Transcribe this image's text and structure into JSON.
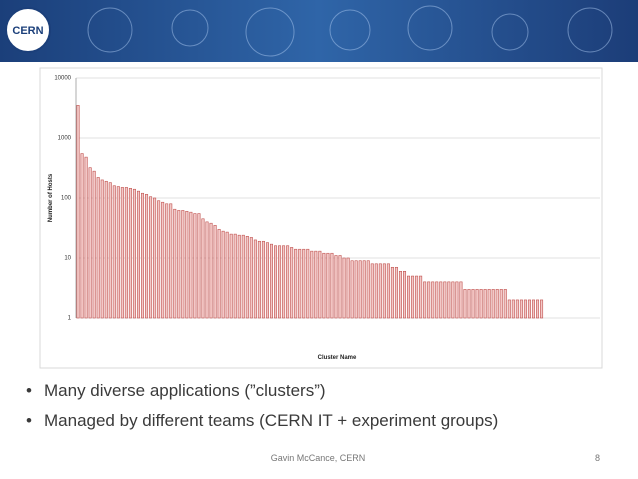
{
  "chart_data": {
    "type": "bar",
    "xlabel": "Cluster Name",
    "ylabel": "Number of Hosts",
    "log": true,
    "grid": true,
    "color": "#f3c9c8",
    "edgecolor": "#c0504d",
    "ylim": [
      1,
      10000
    ],
    "yticks": [
      1,
      10,
      100,
      1000,
      10000
    ],
    "categories": [
      null,
      null,
      null,
      null,
      null,
      null,
      null,
      null,
      null,
      null,
      null,
      null,
      null,
      null,
      null,
      null,
      null,
      null,
      null,
      null,
      null,
      null,
      null,
      null,
      null,
      null,
      null,
      null,
      null,
      null,
      null,
      null,
      null,
      null,
      null,
      null,
      null,
      null,
      null,
      null,
      null,
      null,
      null,
      null,
      null,
      null,
      null,
      null,
      null,
      null,
      null,
      null,
      null,
      null,
      null,
      null,
      null,
      null,
      null,
      null,
      null,
      null,
      null,
      null,
      null,
      null,
      null,
      null,
      null,
      null,
      null,
      null,
      null,
      null,
      null,
      null,
      null,
      null,
      null,
      null,
      null,
      null,
      null,
      null,
      null,
      null,
      null,
      null,
      null,
      null,
      null,
      null,
      null,
      null,
      null,
      null,
      null,
      null,
      null,
      null,
      null,
      null,
      null,
      null,
      null,
      null,
      null,
      null,
      null,
      null,
      null,
      null,
      null,
      null,
      null,
      null,
      null,
      null,
      null,
      null,
      null,
      null,
      null,
      null,
      null,
      null,
      null,
      null,
      null,
      null
    ],
    "values": [
      3500,
      550,
      480,
      320,
      280,
      220,
      200,
      190,
      180,
      160,
      155,
      150,
      150,
      145,
      140,
      130,
      120,
      115,
      105,
      100,
      90,
      85,
      80,
      80,
      65,
      62,
      62,
      60,
      58,
      55,
      55,
      45,
      40,
      38,
      35,
      30,
      28,
      27,
      25,
      25,
      24,
      24,
      23,
      22,
      20,
      19,
      19,
      18,
      17,
      16,
      16,
      16,
      16,
      15,
      14,
      14,
      14,
      14,
      13,
      13,
      13,
      12,
      12,
      12,
      11,
      11,
      10,
      10,
      9,
      9,
      9,
      9,
      9,
      8,
      8,
      8,
      8,
      8,
      7,
      7,
      6,
      6,
      5,
      5,
      5,
      5,
      4,
      4,
      4,
      4,
      4,
      4,
      4,
      4,
      4,
      4,
      3,
      3,
      3,
      3,
      3,
      3,
      3,
      3,
      3,
      3,
      3,
      2,
      2,
      2,
      2,
      2,
      2,
      2,
      2,
      2,
      1,
      1,
      1,
      1,
      1,
      1,
      1,
      1,
      1,
      1,
      1,
      1,
      1,
      1
    ]
  },
  "slide": {
    "logo": "CERN",
    "bullets": [
      "Many diverse applications (”clusters”)",
      "Managed by different teams (CERN IT + experiment groups)"
    ],
    "footer": "Gavin McCance, CERN",
    "page_number": "8"
  }
}
